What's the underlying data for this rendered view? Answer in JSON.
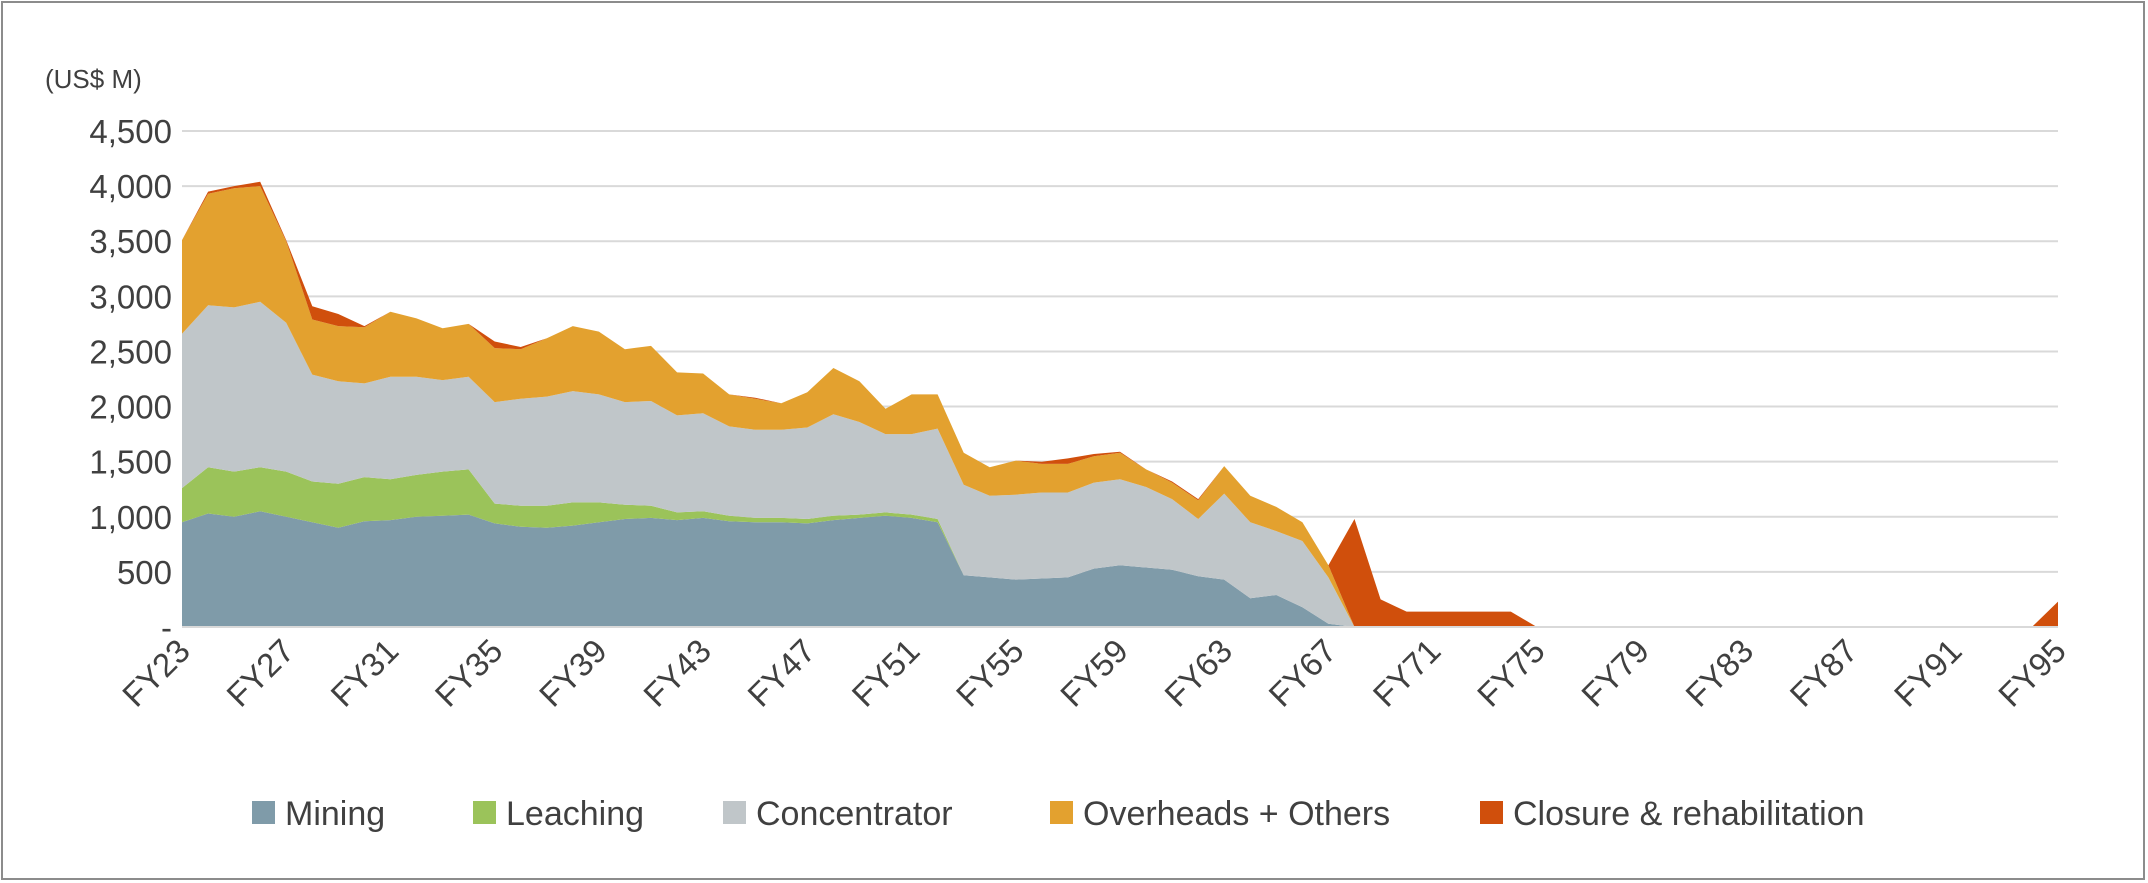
{
  "chart_data": {
    "type": "area",
    "stacked": true,
    "unit_label": "(US$ M)",
    "title": "",
    "xlabel": "",
    "ylabel": "",
    "ylim": [
      0,
      4500
    ],
    "y_ticks": [
      0,
      500,
      1000,
      1500,
      2000,
      2500,
      3000,
      3500,
      4000,
      4500
    ],
    "y_tick_labels": [
      "-",
      "500",
      "1,000",
      "1,500",
      "2,000",
      "2,500",
      "3,000",
      "3,500",
      "4,000",
      "4,500"
    ],
    "grid": "horizontal",
    "legend_position": "bottom",
    "x_tick_labels": [
      "FY23",
      "FY27",
      "FY31",
      "FY35",
      "FY39",
      "FY43",
      "FY47",
      "FY51",
      "FY55",
      "FY59",
      "FY63",
      "FY67",
      "FY71",
      "FY75",
      "FY79",
      "FY83",
      "FY87",
      "FY91",
      "FY95"
    ],
    "categories": [
      "FY23",
      "FY24",
      "FY25",
      "FY26",
      "FY27",
      "FY28",
      "FY29",
      "FY30",
      "FY31",
      "FY32",
      "FY33",
      "FY34",
      "FY35",
      "FY36",
      "FY37",
      "FY38",
      "FY39",
      "FY40",
      "FY41",
      "FY42",
      "FY43",
      "FY44",
      "FY45",
      "FY46",
      "FY47",
      "FY48",
      "FY49",
      "FY50",
      "FY51",
      "FY52",
      "FY53",
      "FY54",
      "FY55",
      "FY56",
      "FY57",
      "FY58",
      "FY59",
      "FY60",
      "FY61",
      "FY62",
      "FY63",
      "FY64",
      "FY65",
      "FY66",
      "FY67",
      "FY68",
      "FY69",
      "FY70",
      "FY71",
      "FY72",
      "FY73",
      "FY74",
      "FY75",
      "FY76",
      "FY77",
      "FY78",
      "FY79",
      "FY80",
      "FY81",
      "FY82",
      "FY83",
      "FY84",
      "FY85",
      "FY86",
      "FY87",
      "FY88",
      "FY89",
      "FY90",
      "FY91",
      "FY92",
      "FY93",
      "FY94",
      "FY95"
    ],
    "series": [
      {
        "name": "Mining",
        "color": "#7f9ba9",
        "values": [
          950,
          1030,
          1000,
          1050,
          1000,
          950,
          900,
          960,
          970,
          1000,
          1010,
          1020,
          940,
          910,
          900,
          920,
          950,
          980,
          990,
          970,
          990,
          960,
          950,
          950,
          940,
          970,
          990,
          1010,
          990,
          950,
          470,
          450,
          430,
          440,
          450,
          530,
          560,
          540,
          520,
          460,
          430,
          260,
          290,
          180,
          30,
          0,
          0,
          0,
          0,
          0,
          0,
          0,
          0,
          0,
          0,
          0,
          0,
          0,
          0,
          0,
          0,
          0,
          0,
          0,
          0,
          0,
          0,
          0,
          0,
          0,
          0,
          0,
          0
        ]
      },
      {
        "name": "Leaching",
        "color": "#9bc35a",
        "values": [
          310,
          420,
          410,
          400,
          410,
          370,
          400,
          400,
          370,
          380,
          400,
          410,
          180,
          190,
          200,
          210,
          180,
          130,
          110,
          70,
          60,
          50,
          40,
          40,
          40,
          40,
          30,
          30,
          30,
          30,
          0,
          0,
          0,
          0,
          0,
          0,
          0,
          0,
          0,
          0,
          0,
          0,
          0,
          0,
          0,
          0,
          0,
          0,
          0,
          0,
          0,
          0,
          0,
          0,
          0,
          0,
          0,
          0,
          0,
          0,
          0,
          0,
          0,
          0,
          0,
          0,
          0,
          0,
          0,
          0,
          0,
          0,
          0
        ]
      },
      {
        "name": "Concentrator",
        "color": "#c0c6c9",
        "values": [
          1400,
          1470,
          1490,
          1500,
          1350,
          970,
          930,
          850,
          930,
          890,
          830,
          840,
          920,
          970,
          990,
          1010,
          980,
          930,
          950,
          880,
          890,
          810,
          800,
          800,
          830,
          920,
          840,
          710,
          730,
          820,
          820,
          740,
          770,
          780,
          770,
          780,
          780,
          730,
          640,
          520,
          780,
          690,
          580,
          600,
          420,
          0,
          0,
          0,
          0,
          0,
          0,
          0,
          0,
          0,
          0,
          0,
          0,
          0,
          0,
          0,
          0,
          0,
          0,
          0,
          0,
          0,
          0,
          0,
          0,
          0,
          0,
          0,
          0
        ]
      },
      {
        "name": "Overheads + Others",
        "color": "#e3a12f",
        "values": [
          850,
          1010,
          1080,
          1050,
          740,
          500,
          500,
          510,
          590,
          530,
          470,
          480,
          490,
          450,
          530,
          590,
          570,
          480,
          500,
          390,
          360,
          290,
          280,
          240,
          320,
          420,
          370,
          230,
          360,
          310,
          290,
          260,
          310,
          260,
          260,
          240,
          240,
          160,
          150,
          170,
          250,
          240,
          220,
          170,
          110,
          0,
          0,
          0,
          0,
          0,
          0,
          0,
          0,
          0,
          0,
          0,
          0,
          0,
          0,
          0,
          0,
          0,
          0,
          0,
          0,
          0,
          0,
          0,
          0,
          0,
          0,
          0,
          0
        ]
      },
      {
        "name": "Closure & rehabilitation",
        "color": "#d04f0c",
        "values": [
          0,
          20,
          20,
          40,
          10,
          120,
          110,
          10,
          0,
          0,
          0,
          0,
          60,
          20,
          0,
          0,
          0,
          0,
          0,
          0,
          0,
          0,
          10,
          0,
          0,
          0,
          0,
          0,
          0,
          0,
          0,
          0,
          0,
          20,
          50,
          20,
          10,
          0,
          10,
          10,
          0,
          0,
          0,
          0,
          0,
          980,
          250,
          140,
          140,
          140,
          140,
          140,
          0,
          0,
          0,
          0,
          0,
          0,
          0,
          0,
          0,
          0,
          0,
          0,
          0,
          0,
          0,
          0,
          0,
          0,
          0,
          0,
          230
        ]
      }
    ]
  }
}
